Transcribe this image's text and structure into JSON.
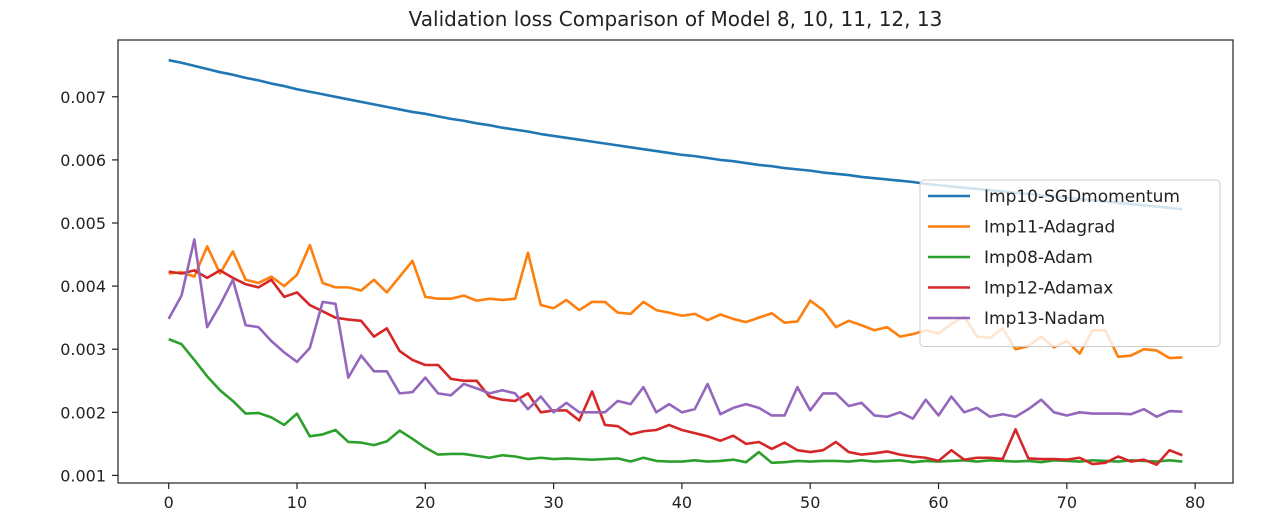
{
  "chart_data": {
    "type": "line",
    "title": "Validation loss Comparison of Model 8, 10, 11, 12, 13",
    "xlabel": "",
    "ylabel": "",
    "xlim": [
      -3.95,
      82.95
    ],
    "ylim": [
      0.00088,
      0.0079
    ],
    "xticks": [
      0,
      10,
      20,
      30,
      40,
      50,
      60,
      70,
      80
    ],
    "xtick_labels": [
      "0",
      "10",
      "20",
      "30",
      "40",
      "50",
      "60",
      "70",
      "80"
    ],
    "yticks": [
      0.001,
      0.002,
      0.003,
      0.004,
      0.005,
      0.006,
      0.007
    ],
    "ytick_labels": [
      "0.001",
      "0.002",
      "0.003",
      "0.004",
      "0.005",
      "0.006",
      "0.007"
    ],
    "grid": false,
    "legend_position": "right",
    "series": [
      {
        "name": "Imp10-SGDmomentum",
        "color": "#1f77b4",
        "values": [
          0.00758,
          0.00754,
          0.00749,
          0.00744,
          0.00739,
          0.00735,
          0.0073,
          0.00726,
          0.00721,
          0.00717,
          0.00712,
          0.00708,
          0.00704,
          0.007,
          0.00696,
          0.00692,
          0.00688,
          0.00684,
          0.0068,
          0.00676,
          0.00673,
          0.00669,
          0.00665,
          0.00662,
          0.00658,
          0.00655,
          0.00651,
          0.00648,
          0.00645,
          0.00641,
          0.00638,
          0.00635,
          0.00632,
          0.00629,
          0.00626,
          0.00623,
          0.0062,
          0.00617,
          0.00614,
          0.00611,
          0.00608,
          0.00606,
          0.00603,
          0.006,
          0.00598,
          0.00595,
          0.00592,
          0.0059,
          0.00587,
          0.00585,
          0.00583,
          0.0058,
          0.00578,
          0.00576,
          0.00573,
          0.00571,
          0.00569,
          0.00567,
          0.00565,
          0.00562,
          0.0056,
          0.00558,
          0.00556,
          0.00554,
          0.00552,
          0.0055,
          0.00548,
          0.00546,
          0.00544,
          0.00542,
          0.0054,
          0.00538,
          0.00536,
          0.00534,
          0.00532,
          0.0053,
          0.00528,
          0.00526,
          0.00524,
          0.00522
        ]
      },
      {
        "name": "Imp11-Adagrad",
        "color": "#ff7f0e",
        "values": [
          0.0042,
          0.00422,
          0.00415,
          0.00463,
          0.0042,
          0.00455,
          0.0041,
          0.00405,
          0.00415,
          0.004,
          0.00418,
          0.00465,
          0.00405,
          0.00398,
          0.00398,
          0.00393,
          0.0041,
          0.0039,
          0.00415,
          0.0044,
          0.00383,
          0.0038,
          0.0038,
          0.00385,
          0.00377,
          0.0038,
          0.00378,
          0.0038,
          0.00453,
          0.0037,
          0.00365,
          0.00378,
          0.00362,
          0.00375,
          0.00375,
          0.00358,
          0.00356,
          0.00375,
          0.00362,
          0.00358,
          0.00353,
          0.00356,
          0.00346,
          0.00355,
          0.00348,
          0.00343,
          0.0035,
          0.00357,
          0.00342,
          0.00344,
          0.00377,
          0.00362,
          0.00335,
          0.00345,
          0.00338,
          0.0033,
          0.00335,
          0.0032,
          0.00324,
          0.0033,
          0.00325,
          0.0034,
          0.00352,
          0.0032,
          0.00318,
          0.00333,
          0.003,
          0.00305,
          0.0032,
          0.00303,
          0.00313,
          0.00293,
          0.0033,
          0.0033,
          0.00288,
          0.0029,
          0.003,
          0.00298,
          0.00286,
          0.00287
        ]
      },
      {
        "name": "Imp08-Adam",
        "color": "#2ca02c",
        "values": [
          0.00316,
          0.00308,
          0.00283,
          0.00257,
          0.00235,
          0.00218,
          0.00198,
          0.00199,
          0.00192,
          0.0018,
          0.00198,
          0.00162,
          0.00165,
          0.00172,
          0.00153,
          0.00152,
          0.00148,
          0.00154,
          0.00171,
          0.00158,
          0.00144,
          0.00133,
          0.00134,
          0.00134,
          0.00131,
          0.00128,
          0.00132,
          0.0013,
          0.00126,
          0.00128,
          0.00126,
          0.00127,
          0.00126,
          0.00125,
          0.00126,
          0.00127,
          0.00122,
          0.00128,
          0.00123,
          0.00122,
          0.00122,
          0.00124,
          0.00122,
          0.00123,
          0.00125,
          0.00121,
          0.00137,
          0.0012,
          0.00121,
          0.00123,
          0.00122,
          0.00123,
          0.00123,
          0.00122,
          0.00124,
          0.00122,
          0.00123,
          0.00124,
          0.00121,
          0.00123,
          0.00122,
          0.00123,
          0.00124,
          0.00122,
          0.00124,
          0.00123,
          0.00122,
          0.00123,
          0.00121,
          0.00124,
          0.00123,
          0.00122,
          0.00124,
          0.00123,
          0.00122,
          0.00124,
          0.00123,
          0.00122,
          0.00124,
          0.00122
        ]
      },
      {
        "name": "Imp12-Adamax",
        "color": "#d62728",
        "values": [
          0.00423,
          0.0042,
          0.00425,
          0.00413,
          0.00425,
          0.00413,
          0.00403,
          0.00398,
          0.0041,
          0.00383,
          0.0039,
          0.0037,
          0.0036,
          0.0035,
          0.00347,
          0.00345,
          0.0032,
          0.00333,
          0.00297,
          0.00283,
          0.00275,
          0.00275,
          0.00253,
          0.0025,
          0.0025,
          0.00225,
          0.0022,
          0.00218,
          0.0023,
          0.002,
          0.00203,
          0.00203,
          0.00187,
          0.00233,
          0.0018,
          0.00178,
          0.00165,
          0.0017,
          0.00172,
          0.0018,
          0.00172,
          0.00167,
          0.00162,
          0.00155,
          0.00163,
          0.0015,
          0.00153,
          0.00142,
          0.00152,
          0.0014,
          0.00137,
          0.0014,
          0.00153,
          0.00137,
          0.00133,
          0.00135,
          0.00138,
          0.00133,
          0.0013,
          0.00128,
          0.00123,
          0.0014,
          0.00125,
          0.00128,
          0.00128,
          0.00126,
          0.00173,
          0.00127,
          0.00126,
          0.00126,
          0.00125,
          0.00128,
          0.00118,
          0.0012,
          0.0013,
          0.00122,
          0.00125,
          0.00117,
          0.0014,
          0.00132
        ]
      },
      {
        "name": "Imp13-Nadam",
        "color": "#9467bd",
        "values": [
          0.00348,
          0.00385,
          0.00474,
          0.00335,
          0.0037,
          0.0041,
          0.00338,
          0.00335,
          0.00313,
          0.00295,
          0.0028,
          0.00302,
          0.00375,
          0.00372,
          0.00255,
          0.0029,
          0.00265,
          0.00265,
          0.0023,
          0.00232,
          0.00255,
          0.0023,
          0.00227,
          0.00245,
          0.00238,
          0.0023,
          0.00235,
          0.0023,
          0.00205,
          0.00225,
          0.002,
          0.00215,
          0.002,
          0.002,
          0.002,
          0.00218,
          0.00213,
          0.0024,
          0.002,
          0.00213,
          0.002,
          0.00205,
          0.00245,
          0.00197,
          0.00207,
          0.00213,
          0.00207,
          0.00195,
          0.00195,
          0.0024,
          0.00203,
          0.0023,
          0.0023,
          0.0021,
          0.00215,
          0.00195,
          0.00193,
          0.002,
          0.0019,
          0.0022,
          0.00195,
          0.00225,
          0.002,
          0.00207,
          0.00193,
          0.00197,
          0.00193,
          0.00205,
          0.0022,
          0.002,
          0.00195,
          0.002,
          0.00198,
          0.00198,
          0.00198,
          0.00197,
          0.00205,
          0.00193,
          0.00202,
          0.00201
        ]
      }
    ]
  }
}
